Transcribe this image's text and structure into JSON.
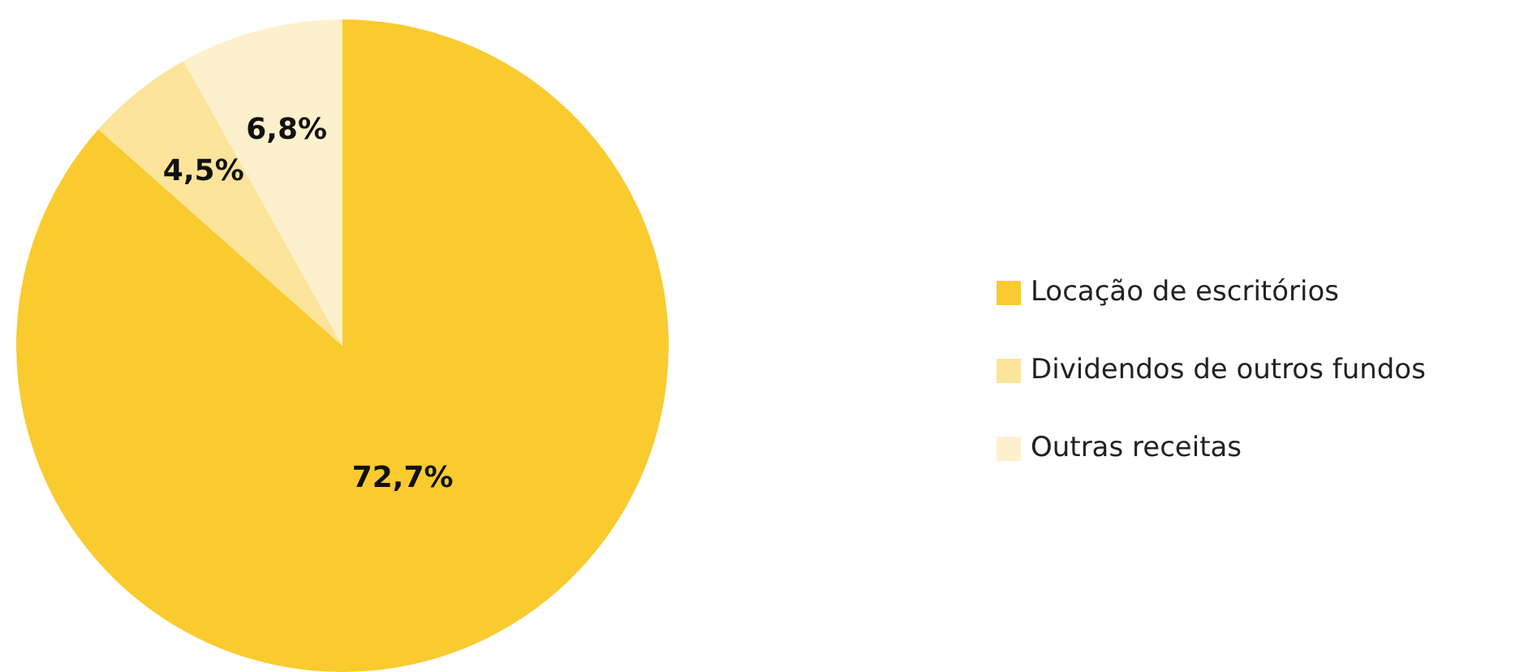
{
  "chart_data": {
    "type": "pie",
    "categories": [
      "Locação de escritórios",
      "Dividendos de outros fundos",
      "Outras receitas"
    ],
    "values": [
      72.7,
      4.5,
      6.8
    ],
    "colors": [
      "#f9cb2f",
      "#fce49a",
      "#fdf0cc"
    ],
    "value_labels": [
      "72,7%",
      "4,5%",
      "6,8%"
    ],
    "legend": "right"
  }
}
